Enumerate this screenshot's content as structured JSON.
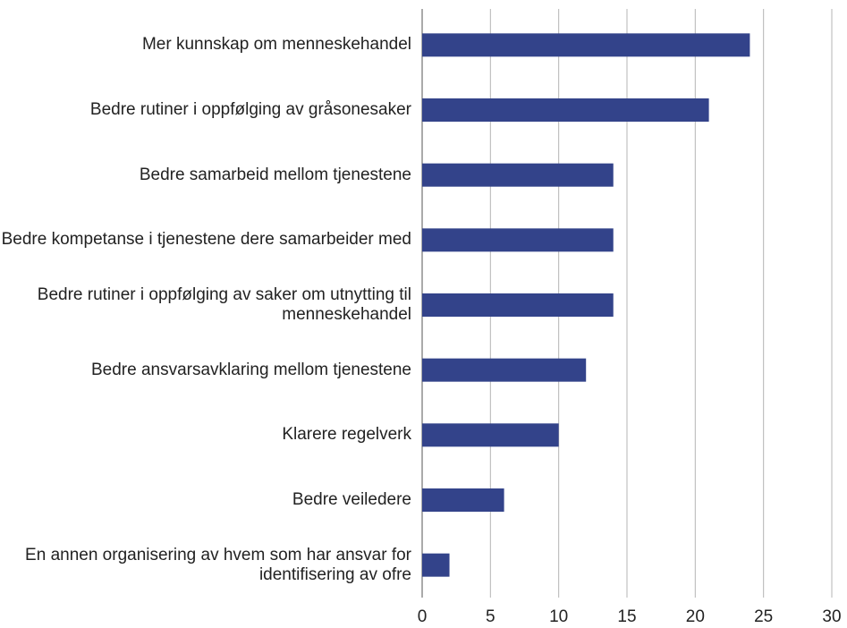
{
  "chart_data": {
    "type": "barh",
    "categories": [
      "Mer kunnskap om menneskehandel",
      "Bedre rutiner i oppfølging av gråsonesaker",
      "Bedre samarbeid mellom tjenestene",
      "Bedre kompetanse i tjenestene dere samarbeider med",
      "Bedre rutiner i oppfølging av saker om utnytting til menneskehandel",
      "Bedre ansvarsavklaring mellom tjenestene",
      "Klarere regelverk",
      "Bedre veiledere",
      "En annen organisering av hvem som har ansvar for identifisering av ofre"
    ],
    "values": [
      24,
      21,
      14,
      14,
      14,
      12,
      10,
      6,
      2
    ],
    "color": "#33438a",
    "xlim": [
      0,
      30
    ],
    "xticks": [
      0,
      5,
      10,
      15,
      20,
      25,
      30
    ],
    "grid": true
  }
}
